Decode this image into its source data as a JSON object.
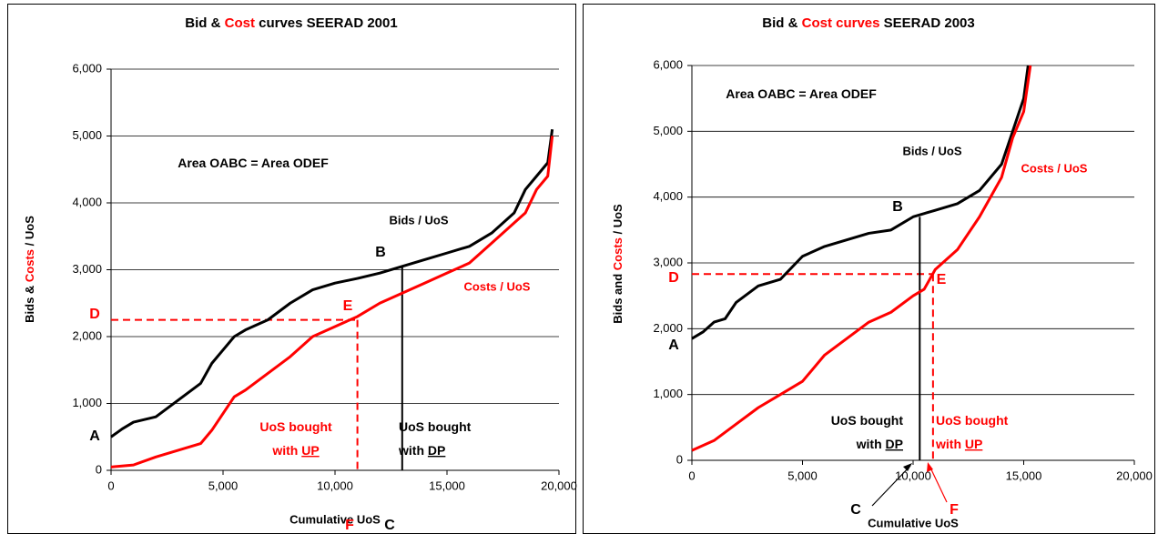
{
  "chart_data": [
    {
      "type": "line",
      "title": [
        {
          "text": "Bid & ",
          "color": "#000000"
        },
        {
          "text": "Cost",
          "color": "#ff0000"
        },
        {
          "text": " curves SEERAD 2001",
          "color": "#000000"
        }
      ],
      "y_label": [
        {
          "text": "Bids & ",
          "color": "#000000"
        },
        {
          "text": "Costs",
          "color": "#ff0000"
        },
        {
          "text": " / UoS",
          "color": "#000000"
        }
      ],
      "x_label": "Cumulative UoS",
      "xlim": [
        0,
        20000
      ],
      "ylim": [
        0,
        6000
      ],
      "xticks": [
        0,
        {
          "value": 5000,
          "label": "5,000"
        },
        {
          "value": 10000,
          "label": "10,000"
        },
        {
          "value": 15000,
          "label": "15,000"
        },
        {
          "value": 20000,
          "label": "20,000"
        }
      ],
      "yticks": [
        0,
        {
          "value": 1000,
          "label": "1,000"
        },
        {
          "value": 2000,
          "label": "2,000"
        },
        {
          "value": 3000,
          "label": "3,000"
        },
        {
          "value": 4000,
          "label": "4,000"
        },
        {
          "value": 5000,
          "label": "5,000"
        },
        {
          "value": 6000,
          "label": "6,000"
        }
      ],
      "grid": true,
      "series": [
        {
          "name": "Bids / UoS",
          "color": "#000000",
          "x": [
            0,
            500,
            1000,
            2000,
            3000,
            4000,
            4500,
            5000,
            5500,
            6000,
            7000,
            8000,
            9000,
            10000,
            11000,
            12000,
            13000,
            14000,
            15000,
            16000,
            17000,
            18000,
            18500,
            19000,
            19500,
            19700
          ],
          "values": [
            500,
            620,
            720,
            800,
            1050,
            1300,
            1600,
            1800,
            2000,
            2100,
            2250,
            2500,
            2700,
            2800,
            2870,
            2950,
            3050,
            3150,
            3250,
            3350,
            3550,
            3850,
            4200,
            4400,
            4600,
            5100
          ]
        },
        {
          "name": "Costs / UoS",
          "color": "#ff0000",
          "x": [
            0,
            1000,
            2000,
            3000,
            4000,
            4500,
            5000,
            5500,
            6000,
            7000,
            8000,
            9000,
            10000,
            11000,
            12000,
            13000,
            14000,
            15000,
            16000,
            17000,
            18000,
            18500,
            19000,
            19500,
            19700
          ],
          "values": [
            50,
            80,
            200,
            300,
            400,
            600,
            850,
            1100,
            1200,
            1450,
            1700,
            2000,
            2150,
            2300,
            2500,
            2650,
            2800,
            2950,
            3100,
            3400,
            3700,
            3850,
            4200,
            4400,
            5000
          ]
        }
      ],
      "reference_lines": [
        {
          "x": [
            0,
            11000
          ],
          "y": [
            2250,
            2250
          ],
          "color": "#ff0000",
          "dash": true
        },
        {
          "x": [
            11000,
            11000
          ],
          "y": [
            2250,
            0
          ],
          "color": "#ff0000",
          "dash": true
        },
        {
          "x": [
            13000,
            13000
          ],
          "y": [
            3050,
            0
          ],
          "color": "#000000",
          "dash": false
        }
      ],
      "annotations": [
        {
          "text": [
            {
              "text": "A"
            }
          ],
          "color": "#000000"
        },
        {
          "text": [
            {
              "text": "B"
            }
          ],
          "color": "#000000"
        },
        {
          "text": [
            {
              "text": "C"
            }
          ],
          "color": "#000000"
        },
        {
          "text": [
            {
              "text": "D"
            }
          ],
          "color": "#ff0000"
        },
        {
          "text": [
            {
              "text": "E"
            }
          ],
          "color": "#ff0000"
        },
        {
          "text": [
            {
              "text": "F"
            }
          ],
          "color": "#ff0000"
        },
        {
          "text": [
            {
              "text": "Area OABC = Area ODEF"
            }
          ],
          "color": "#000000"
        },
        {
          "text": [
            {
              "text": "UoS bought"
            }
          ],
          "color": "#ff0000"
        },
        {
          "text": [
            {
              "text": "with "
            },
            {
              "text": "UP",
              "underline": true
            }
          ],
          "color": "#ff0000"
        },
        {
          "text": [
            {
              "text": "UoS bought"
            }
          ],
          "color": "#000000"
        },
        {
          "text": [
            {
              "text": "with "
            },
            {
              "text": "DP",
              "underline": true
            }
          ],
          "color": "#000000"
        }
      ]
    },
    {
      "type": "line",
      "title": [
        {
          "text": "Bid & ",
          "color": "#000000"
        },
        {
          "text": "Cost curves",
          "color": "#ff0000"
        },
        {
          "text": " SEERAD 2003",
          "color": "#000000"
        }
      ],
      "y_label": [
        {
          "text": "Bids and ",
          "color": "#000000"
        },
        {
          "text": "Costs",
          "color": "#ff0000"
        },
        {
          "text": " / UoS",
          "color": "#000000"
        }
      ],
      "x_label": "Cumulative UoS",
      "xlim": [
        0,
        20000
      ],
      "ylim": [
        0,
        6000
      ],
      "xticks": [
        0,
        {
          "value": 5000,
          "label": "5,000"
        },
        {
          "value": 10000,
          "label": "10,000"
        },
        {
          "value": 15000,
          "label": "15,000"
        },
        {
          "value": 20000,
          "label": "20,000"
        }
      ],
      "yticks": [
        0,
        {
          "value": 1000,
          "label": "1,000"
        },
        {
          "value": 2000,
          "label": "2,000"
        },
        {
          "value": 3000,
          "label": "3,000"
        },
        {
          "value": 4000,
          "label": "4,000"
        },
        {
          "value": 5000,
          "label": "5,000"
        },
        {
          "value": 6000,
          "label": "6,000"
        }
      ],
      "grid": true,
      "series": [
        {
          "name": "Bids / UoS",
          "color": "#000000",
          "x": [
            0,
            500,
            1000,
            1500,
            2000,
            3000,
            4000,
            5000,
            6000,
            7000,
            8000,
            9000,
            10000,
            11000,
            12000,
            13000,
            14000,
            14500,
            15000,
            15200
          ],
          "values": [
            1850,
            1950,
            2100,
            2150,
            2400,
            2650,
            2750,
            3100,
            3250,
            3350,
            3450,
            3500,
            3700,
            3800,
            3900,
            4100,
            4500,
            5000,
            5500,
            6000
          ]
        },
        {
          "name": "Costs / UoS",
          "color": "#ff0000",
          "x": [
            0,
            1000,
            2000,
            3000,
            4000,
            5000,
            6000,
            7000,
            8000,
            9000,
            10000,
            10500,
            11000,
            11500,
            12000,
            13000,
            14000,
            14500,
            15000,
            15300
          ],
          "values": [
            150,
            300,
            550,
            800,
            1000,
            1200,
            1600,
            1850,
            2100,
            2250,
            2500,
            2600,
            2900,
            3050,
            3200,
            3700,
            4300,
            4900,
            5300,
            6000
          ]
        }
      ],
      "reference_lines": [
        {
          "x": [
            0,
            10900
          ],
          "y": [
            2830,
            2830
          ],
          "color": "#ff0000",
          "dash": true
        },
        {
          "x": [
            10900,
            10900
          ],
          "y": [
            2830,
            0
          ],
          "color": "#ff0000",
          "dash": true
        },
        {
          "x": [
            10300,
            10300
          ],
          "y": [
            3700,
            0
          ],
          "color": "#000000",
          "dash": false
        }
      ],
      "annotations": [
        {
          "text": [
            {
              "text": "A"
            }
          ],
          "color": "#000000"
        },
        {
          "text": [
            {
              "text": "B"
            }
          ],
          "color": "#000000"
        },
        {
          "text": [
            {
              "text": "C"
            }
          ],
          "color": "#000000"
        },
        {
          "text": [
            {
              "text": "D"
            }
          ],
          "color": "#ff0000"
        },
        {
          "text": [
            {
              "text": "E"
            }
          ],
          "color": "#ff0000"
        },
        {
          "text": [
            {
              "text": "F"
            }
          ],
          "color": "#ff0000"
        },
        {
          "text": [
            {
              "text": "Area OABC = Area ODEF"
            }
          ],
          "color": "#000000"
        },
        {
          "text": [
            {
              "text": "UoS bought"
            }
          ],
          "color": "#000000"
        },
        {
          "text": [
            {
              "text": "with "
            },
            {
              "text": "DP",
              "underline": true
            }
          ],
          "color": "#000000"
        },
        {
          "text": [
            {
              "text": "UoS bought"
            }
          ],
          "color": "#ff0000"
        },
        {
          "text": [
            {
              "text": "with "
            },
            {
              "text": "UP",
              "underline": true
            }
          ],
          "color": "#ff0000"
        }
      ]
    }
  ]
}
